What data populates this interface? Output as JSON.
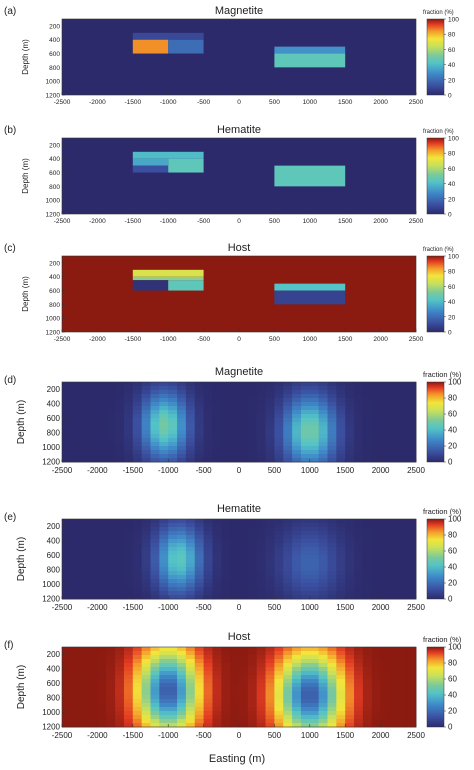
{
  "figure": {
    "xlabel": "Easting (m)",
    "colorbar_title": "fraction (%)",
    "colorbar_ticks": [
      "0",
      "20",
      "40",
      "60",
      "80",
      "100"
    ],
    "colors": {
      "background_low": "#2c2a6b",
      "host_high": "#8b1a10"
    }
  },
  "chart_data": [
    {
      "type": "heatmap",
      "panel": "(a)",
      "title": "Magnetite",
      "ylabel": "Depth (m)",
      "xlim": [
        -2500,
        2500
      ],
      "ylim": [
        1200,
        100
      ],
      "xticks": [
        "-2500",
        "-2000",
        "-1500",
        "-1000",
        "-500",
        "0",
        "500",
        "1000",
        "1500",
        "2000",
        "2500"
      ],
      "yticks": [
        "200",
        "400",
        "600",
        "800",
        "1000",
        "1200"
      ],
      "background_value": 0,
      "blocks": [
        {
          "x": [
            -1500,
            -500
          ],
          "y": [
            300,
            400
          ],
          "value": 10
        },
        {
          "x": [
            -1500,
            -1000
          ],
          "y": [
            400,
            600
          ],
          "value": 85
        },
        {
          "x": [
            -1000,
            -500
          ],
          "y": [
            400,
            600
          ],
          "value": 20
        },
        {
          "x": [
            500,
            1500
          ],
          "y": [
            500,
            600
          ],
          "value": 30
        },
        {
          "x": [
            500,
            1500
          ],
          "y": [
            600,
            800
          ],
          "value": 45
        }
      ]
    },
    {
      "type": "heatmap",
      "panel": "(b)",
      "title": "Hematite",
      "ylabel": "Depth (m)",
      "xlim": [
        -2500,
        2500
      ],
      "ylim": [
        1200,
        100
      ],
      "xticks": [
        "-2500",
        "-2000",
        "-1500",
        "-1000",
        "-500",
        "0",
        "500",
        "1000",
        "1500",
        "2000",
        "2500"
      ],
      "yticks": [
        "200",
        "400",
        "600",
        "800",
        "1000",
        "1200"
      ],
      "background_value": 0,
      "blocks": [
        {
          "x": [
            -1500,
            -500
          ],
          "y": [
            300,
            400
          ],
          "value": 40
        },
        {
          "x": [
            -1500,
            -1000
          ],
          "y": [
            400,
            500
          ],
          "value": 35
        },
        {
          "x": [
            -1500,
            -1000
          ],
          "y": [
            500,
            600
          ],
          "value": 12
        },
        {
          "x": [
            -1000,
            -500
          ],
          "y": [
            400,
            600
          ],
          "value": 45
        },
        {
          "x": [
            500,
            1500
          ],
          "y": [
            500,
            800
          ],
          "value": 45
        }
      ]
    },
    {
      "type": "heatmap",
      "panel": "(c)",
      "title": "Host",
      "ylabel": "Depth (m)",
      "xlim": [
        -2500,
        2500
      ],
      "ylim": [
        1200,
        100
      ],
      "xticks": [
        "-2500",
        "-2000",
        "-1500",
        "-1000",
        "-500",
        "0",
        "500",
        "1000",
        "1500",
        "2000",
        "2500"
      ],
      "yticks": [
        "200",
        "400",
        "600",
        "800",
        "1000",
        "1200"
      ],
      "background_value": 100,
      "blocks": [
        {
          "x": [
            -1500,
            -500
          ],
          "y": [
            300,
            400
          ],
          "value": 68
        },
        {
          "x": [
            -1500,
            -500
          ],
          "y": [
            400,
            450
          ],
          "value": 55
        },
        {
          "x": [
            -1500,
            -1000
          ],
          "y": [
            450,
            600
          ],
          "value": 3
        },
        {
          "x": [
            -1000,
            -500
          ],
          "y": [
            450,
            600
          ],
          "value": 45
        },
        {
          "x": [
            500,
            1500
          ],
          "y": [
            500,
            600
          ],
          "value": 42
        },
        {
          "x": [
            500,
            1500
          ],
          "y": [
            600,
            800
          ],
          "value": 8
        }
      ]
    },
    {
      "type": "heatmap",
      "panel": "(d)",
      "title": "Magnetite",
      "ylabel": "Depth (m)",
      "xlim": [
        -2500,
        2500
      ],
      "ylim": [
        1200,
        100
      ],
      "xticks": [
        "-2500",
        "-2000",
        "-1500",
        "-1000",
        "-500",
        "0",
        "500",
        "1000",
        "1500",
        "2000",
        "2500"
      ],
      "yticks": [
        "200",
        "400",
        "600",
        "800",
        "1000",
        "1200"
      ],
      "background_value": 0,
      "blobs": [
        {
          "x": -1050,
          "y": 700,
          "sx": 230,
          "sy": 320,
          "value": 50
        },
        {
          "x": 1000,
          "y": 780,
          "sx": 260,
          "sy": 340,
          "value": 50
        }
      ]
    },
    {
      "type": "heatmap",
      "panel": "(e)",
      "title": "Hematite",
      "ylabel": "Depth (m)",
      "xlim": [
        -2500,
        2500
      ],
      "ylim": [
        1200,
        100
      ],
      "xticks": [
        "-2500",
        "-2000",
        "-1500",
        "-1000",
        "-500",
        "0",
        "500",
        "1000",
        "1500",
        "2000",
        "2500"
      ],
      "yticks": [
        "200",
        "400",
        "600",
        "800",
        "1000",
        "1200"
      ],
      "background_value": 0,
      "blobs": [
        {
          "x": -850,
          "y": 650,
          "sx": 230,
          "sy": 320,
          "value": 45
        },
        {
          "x": 1000,
          "y": 700,
          "sx": 300,
          "sy": 350,
          "value": 18
        }
      ]
    },
    {
      "type": "heatmap",
      "panel": "(f)",
      "title": "Host",
      "ylabel": "Depth (m)",
      "xlim": [
        -2500,
        2500
      ],
      "ylim": [
        1200,
        100
      ],
      "xticks": [
        "-2500",
        "-2000",
        "-1500",
        "-1000",
        "-500",
        "0",
        "500",
        "1000",
        "1500",
        "2000",
        "2500"
      ],
      "yticks": [
        "200",
        "400",
        "600",
        "800",
        "1000",
        "1200"
      ],
      "background_value": 100,
      "blobs": [
        {
          "x": -1000,
          "y": 700,
          "sx": 280,
          "sy": 380,
          "value": -85
        },
        {
          "x": 1000,
          "y": 760,
          "sx": 300,
          "sy": 380,
          "value": -85
        }
      ]
    }
  ]
}
